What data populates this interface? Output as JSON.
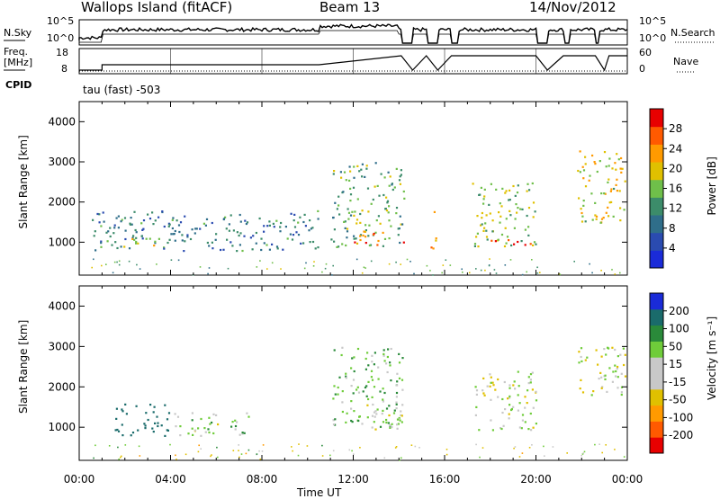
{
  "header": {
    "station": "Wallops Island (fitACF)",
    "beam": "Beam 13",
    "date": "14/Nov/2012"
  },
  "strip_labels": {
    "nsky": "N.Sky",
    "freq_line1": "Freq.",
    "freq_line2": "[MHz]",
    "cpid": "CPID",
    "nsearch": "N.Search",
    "nave": "Nave",
    "cpid_value": "tau (fast) -503"
  },
  "strip_ticks": {
    "noise_left": [
      "10^5",
      "10^0"
    ],
    "noise_right": [
      "10^5",
      "10^0"
    ],
    "freq_left": [
      "18",
      "8"
    ],
    "freq_right": [
      "60",
      "0"
    ]
  },
  "colors": {
    "power_scale": [
      "#1a2bd8",
      "#2a4bb0",
      "#2f6e8a",
      "#3c8c6a",
      "#6fbf4a",
      "#e0c000",
      "#ff9a00",
      "#ff5a00",
      "#e80000"
    ],
    "velocity_scale": [
      "#e80000",
      "#ff5a00",
      "#ff9a00",
      "#e0c000",
      "#c8c8c8",
      "#c8c8c8",
      "#6fcc3a",
      "#2a8a3a",
      "#1a6b6b",
      "#1a2bd8"
    ]
  },
  "chart_data": [
    {
      "type": "heatmap",
      "title": "Power",
      "ylabel": "Slant Range [km]",
      "xlabel": "",
      "ylim": [
        180,
        4500
      ],
      "y_ticks": [
        "1000",
        "2000",
        "3000",
        "4000"
      ],
      "colorbar_label": "Power [dB]",
      "colorbar_ticks": [
        "4",
        "8",
        "12",
        "16",
        "20",
        "24",
        "28"
      ],
      "colorbar_range": [
        0,
        30
      ],
      "patches": [
        {
          "t": [
            0.5,
            10.5
          ],
          "r": [
            800,
            1800
          ],
          "value": 9
        },
        {
          "t": [
            1.8,
            3.8
          ],
          "r": [
            850,
            1150
          ],
          "value": 17
        },
        {
          "t": [
            11.0,
            14.2
          ],
          "r": [
            900,
            3000
          ],
          "value": 13
        },
        {
          "t": [
            12.0,
            14.2
          ],
          "r": [
            950,
            1300
          ],
          "value": 24
        },
        {
          "t": [
            15.3,
            15.6
          ],
          "r": [
            800,
            1800
          ],
          "value": 22
        },
        {
          "t": [
            17.2,
            20.0
          ],
          "r": [
            900,
            2500
          ],
          "value": 15
        },
        {
          "t": [
            17.5,
            20.0
          ],
          "r": [
            950,
            1100
          ],
          "value": 26
        },
        {
          "t": [
            21.8,
            23.9
          ],
          "r": [
            1500,
            3300
          ],
          "value": 18
        }
      ]
    },
    {
      "type": "heatmap",
      "title": "Velocity",
      "ylabel": "Slant Range [km]",
      "xlabel": "Time UT",
      "ylim": [
        180,
        4500
      ],
      "y_ticks": [
        "1000",
        "2000",
        "3000",
        "4000"
      ],
      "x_ticks": [
        "00:00",
        "04:00",
        "08:00",
        "12:00",
        "16:00",
        "20:00",
        "00:00"
      ],
      "x_range_hours": [
        0,
        24
      ],
      "colorbar_label": "Velocity [m s⁻¹]",
      "colorbar_ticks": [
        "-200",
        "-100",
        "-50",
        "-15",
        "15",
        "50",
        "100",
        "200"
      ],
      "patches": [
        {
          "t": [
            1.5,
            4.0
          ],
          "r": [
            800,
            1600
          ],
          "value": 150
        },
        {
          "t": [
            4.0,
            7.5
          ],
          "r": [
            800,
            1400
          ],
          "value": 20
        },
        {
          "t": [
            11.0,
            14.2
          ],
          "r": [
            1000,
            3000
          ],
          "value": 35
        },
        {
          "t": [
            12.5,
            14.2
          ],
          "r": [
            950,
            1600
          ],
          "value": 0
        },
        {
          "t": [
            17.2,
            20.0
          ],
          "r": [
            950,
            2400
          ],
          "value": 0
        },
        {
          "t": [
            21.8,
            23.9
          ],
          "r": [
            1700,
            3000
          ],
          "value": 0
        }
      ]
    }
  ]
}
